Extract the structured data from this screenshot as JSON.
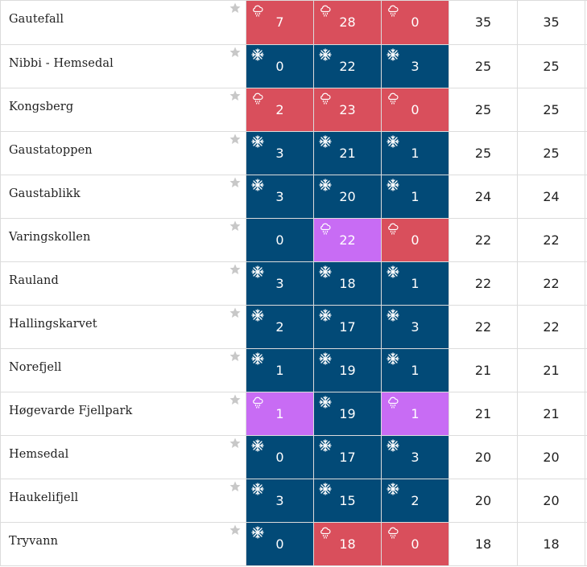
{
  "colors": {
    "snow": "#024a77",
    "rain": "#d94f5c",
    "mixed": "#c86cf4",
    "star": "#c8c8c8"
  },
  "rows": [
    {
      "name": "Gautefall",
      "cells": [
        {
          "value": "7",
          "type": "rain",
          "icon": "rain-cloud-icon"
        },
        {
          "value": "28",
          "type": "rain",
          "icon": "rain-cloud-icon"
        },
        {
          "value": "0",
          "type": "rain",
          "icon": "rain-cloud-icon"
        }
      ],
      "col4": "35",
      "col5": "35"
    },
    {
      "name": "Nibbi - Hemsedal",
      "cells": [
        {
          "value": "0",
          "type": "snow",
          "icon": "snowflake-icon"
        },
        {
          "value": "22",
          "type": "snow",
          "icon": "snowflake-icon"
        },
        {
          "value": "3",
          "type": "snow",
          "icon": "snowflake-icon"
        }
      ],
      "col4": "25",
      "col5": "25"
    },
    {
      "name": "Kongsberg",
      "cells": [
        {
          "value": "2",
          "type": "rain",
          "icon": "rain-cloud-icon"
        },
        {
          "value": "23",
          "type": "rain",
          "icon": "rain-cloud-icon"
        },
        {
          "value": "0",
          "type": "rain",
          "icon": "rain-cloud-icon"
        }
      ],
      "col4": "25",
      "col5": "25"
    },
    {
      "name": "Gaustatoppen",
      "cells": [
        {
          "value": "3",
          "type": "snow",
          "icon": "snowflake-icon"
        },
        {
          "value": "21",
          "type": "snow",
          "icon": "snowflake-icon"
        },
        {
          "value": "1",
          "type": "snow",
          "icon": "snowflake-icon"
        }
      ],
      "col4": "25",
      "col5": "25"
    },
    {
      "name": "Gaustablikk",
      "cells": [
        {
          "value": "3",
          "type": "snow",
          "icon": "snowflake-icon"
        },
        {
          "value": "20",
          "type": "snow",
          "icon": "snowflake-icon"
        },
        {
          "value": "1",
          "type": "snow",
          "icon": "snowflake-icon"
        }
      ],
      "col4": "24",
      "col5": "24"
    },
    {
      "name": "Varingskollen",
      "cells": [
        {
          "value": "0",
          "type": "snow",
          "icon": ""
        },
        {
          "value": "22",
          "type": "mixed",
          "icon": "rain-cloud-icon"
        },
        {
          "value": "0",
          "type": "rain",
          "icon": "rain-cloud-icon"
        }
      ],
      "col4": "22",
      "col5": "22"
    },
    {
      "name": "Rauland",
      "cells": [
        {
          "value": "3",
          "type": "snow",
          "icon": "snowflake-icon"
        },
        {
          "value": "18",
          "type": "snow",
          "icon": "snowflake-icon"
        },
        {
          "value": "1",
          "type": "snow",
          "icon": "snowflake-icon"
        }
      ],
      "col4": "22",
      "col5": "22"
    },
    {
      "name": "Hallingskarvet",
      "cells": [
        {
          "value": "2",
          "type": "snow",
          "icon": "snowflake-icon"
        },
        {
          "value": "17",
          "type": "snow",
          "icon": "snowflake-icon"
        },
        {
          "value": "3",
          "type": "snow",
          "icon": "snowflake-icon"
        }
      ],
      "col4": "22",
      "col5": "22"
    },
    {
      "name": "Norefjell",
      "cells": [
        {
          "value": "1",
          "type": "snow",
          "icon": "snowflake-icon"
        },
        {
          "value": "19",
          "type": "snow",
          "icon": "snowflake-icon"
        },
        {
          "value": "1",
          "type": "snow",
          "icon": "snowflake-icon"
        }
      ],
      "col4": "21",
      "col5": "21"
    },
    {
      "name": "Høgevarde Fjellpark",
      "cells": [
        {
          "value": "1",
          "type": "mixed",
          "icon": "rain-cloud-icon"
        },
        {
          "value": "19",
          "type": "snow",
          "icon": "snowflake-icon"
        },
        {
          "value": "1",
          "type": "mixed",
          "icon": "rain-cloud-icon"
        }
      ],
      "col4": "21",
      "col5": "21"
    },
    {
      "name": "Hemsedal",
      "cells": [
        {
          "value": "0",
          "type": "snow",
          "icon": "snowflake-icon"
        },
        {
          "value": "17",
          "type": "snow",
          "icon": "snowflake-icon"
        },
        {
          "value": "3",
          "type": "snow",
          "icon": "snowflake-icon"
        }
      ],
      "col4": "20",
      "col5": "20"
    },
    {
      "name": "Haukelifjell",
      "cells": [
        {
          "value": "3",
          "type": "snow",
          "icon": "snowflake-icon"
        },
        {
          "value": "15",
          "type": "snow",
          "icon": "snowflake-icon"
        },
        {
          "value": "2",
          "type": "snow",
          "icon": "snowflake-icon"
        }
      ],
      "col4": "20",
      "col5": "20"
    },
    {
      "name": "Tryvann",
      "cells": [
        {
          "value": "0",
          "type": "snow",
          "icon": "snowflake-icon"
        },
        {
          "value": "18",
          "type": "rain",
          "icon": "rain-cloud-icon"
        },
        {
          "value": "0",
          "type": "rain",
          "icon": "rain-cloud-icon"
        }
      ],
      "col4": "18",
      "col5": "18"
    }
  ]
}
